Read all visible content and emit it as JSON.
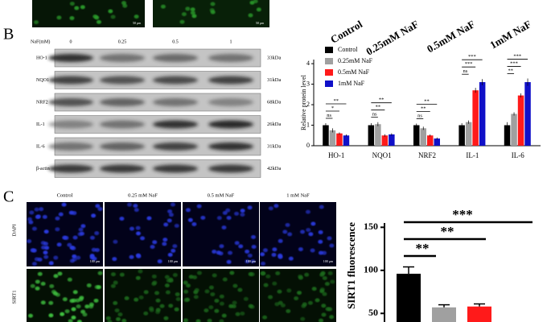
{
  "top_strip": {
    "scale_bars": [
      "50 μm",
      "50 μm"
    ],
    "labels": [
      "Control",
      "0.25mM NaF",
      "0.5mM NaF",
      "1mM NaF"
    ]
  },
  "panel_b": {
    "label": "B",
    "blot": {
      "header": "NaF(mM)",
      "doses": [
        "0",
        "0.25",
        "0.5",
        "1"
      ],
      "rows": [
        {
          "name": "HO-1",
          "size": "33kDa"
        },
        {
          "name": "NQO1",
          "size": "31kDa"
        },
        {
          "name": "NRF2",
          "size": "68kDa"
        },
        {
          "name": "IL-1",
          "size": "26kDa"
        },
        {
          "name": "IL-6",
          "size": "31kDa"
        },
        {
          "name": "β-actin",
          "size": "42kDa"
        }
      ]
    }
  },
  "panel_c": {
    "label": "C",
    "columns": [
      "Control",
      "0.25 mM NaF",
      "0.5 mM NaF",
      "1 mM NaF"
    ],
    "rows": [
      "DAPI",
      "SIRT1"
    ],
    "scale_bar": "100 μm"
  },
  "chart_data": [
    {
      "type": "bar",
      "y_label": "Relative protein level",
      "categories": [
        "HO-1",
        "NQO1",
        "NRF2",
        "IL-1",
        "IL-6"
      ],
      "series": [
        {
          "name": "Control",
          "color": "#000000",
          "values": [
            1.0,
            1.0,
            1.0,
            1.0,
            1.0
          ],
          "errors": [
            0.1,
            0.1,
            0.08,
            0.1,
            0.15
          ]
        },
        {
          "name": "0.25mM NaF",
          "color": "#a0a0a0",
          "values": [
            0.75,
            1.05,
            0.85,
            1.15,
            1.55
          ],
          "errors": [
            0.1,
            0.1,
            0.08,
            0.08,
            0.08
          ]
        },
        {
          "name": "0.5mM NaF",
          "color": "#ff1a1a",
          "values": [
            0.6,
            0.5,
            0.5,
            2.7,
            2.45
          ],
          "errors": [
            0.05,
            0.06,
            0.05,
            0.12,
            0.1
          ]
        },
        {
          "name": "1mM NaF",
          "color": "#1010c8",
          "values": [
            0.5,
            0.55,
            0.35,
            3.1,
            3.1
          ],
          "errors": [
            0.05,
            0.06,
            0.05,
            0.15,
            0.18
          ]
        }
      ],
      "significance": [
        [
          "ns",
          "*",
          "**"
        ],
        [
          "ns",
          "**",
          "**"
        ],
        [
          "ns",
          "**",
          "**"
        ],
        [
          "ns",
          "***",
          "***"
        ],
        [
          "**",
          "***",
          "***"
        ]
      ],
      "ylim": [
        0,
        4.2
      ],
      "yticks": [
        0,
        1,
        2,
        3,
        4
      ],
      "legend": "top-left"
    },
    {
      "type": "bar",
      "y_label": "SIRT1 fluorescence",
      "categories": [
        null,
        null,
        null
      ],
      "values": [
        96,
        57,
        58
      ],
      "errors": [
        8,
        3,
        3
      ],
      "colors": [
        "#000000",
        "#a0a0a0",
        "#ff1a1a"
      ],
      "significance": [
        "**",
        "**",
        "***"
      ],
      "ylim": [
        40,
        155
      ],
      "yticks": [
        50,
        100,
        150
      ]
    }
  ]
}
